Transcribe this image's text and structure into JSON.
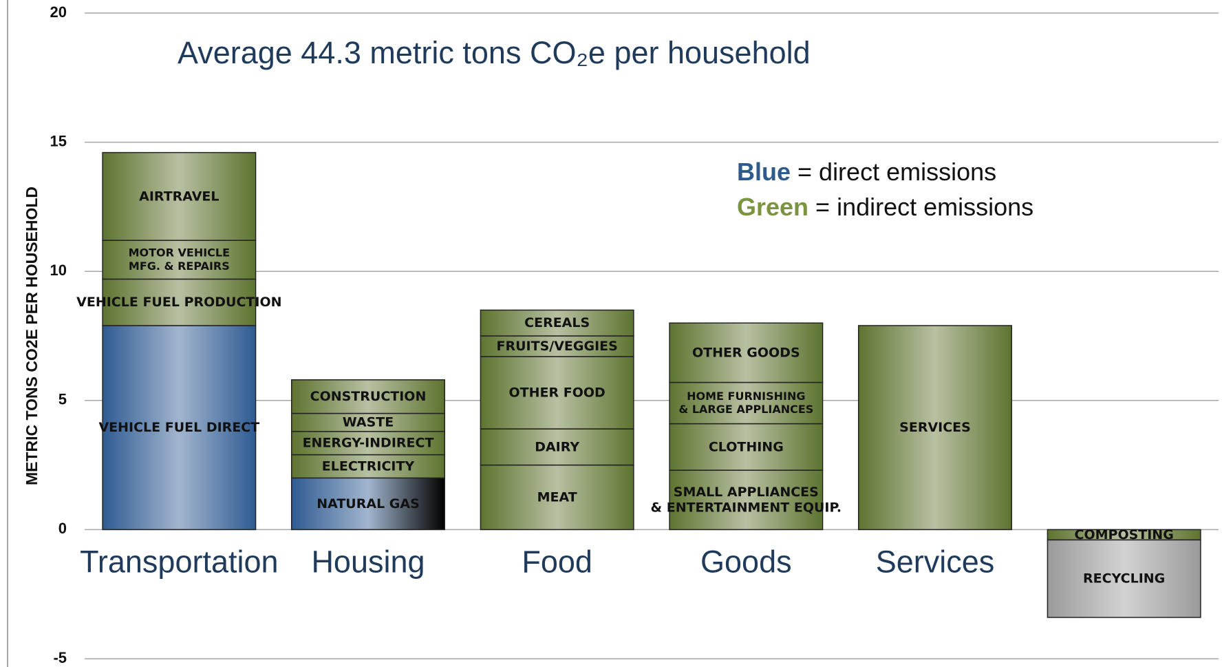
{
  "chart_data": {
    "type": "stacked-bar",
    "title": "Average 44.3 metric tons CO₂e per household",
    "y_label": "METRIC TONS CO2E PER HOUSEHOLD",
    "ylim": [
      -5,
      20
    ],
    "yticks": [
      -5,
      0,
      5,
      10,
      15,
      20
    ],
    "grid": true,
    "legend": [
      {
        "key": "Blue",
        "text": "= direct emissions",
        "color": "#2e5a8c"
      },
      {
        "key": "Green",
        "text": "= indirect emissions",
        "color": "#7a9440"
      }
    ],
    "categories": [
      "Transportation",
      "Housing",
      "Food",
      "Goods",
      "Services",
      null
    ],
    "stacks": [
      {
        "segments": [
          {
            "name": [
              "VEHICLE FUEL DIRECT"
            ],
            "value": 7.9,
            "color": "#2f5b92"
          },
          {
            "name": [
              "VEHICLE FUEL PRODUCTION"
            ],
            "value": 1.8,
            "color": "#5e7430"
          },
          {
            "name": [
              "MOTOR VEHICLE",
              "MFG. & REPAIRS"
            ],
            "value": 1.5,
            "color": "#5e7430"
          },
          {
            "name": [
              "AIRTRAVEL"
            ],
            "value": 3.4,
            "color": "#5e7430"
          }
        ]
      },
      {
        "segments": [
          {
            "name": [
              "NATURAL GAS"
            ],
            "value": 2.0,
            "color": "#2f5b92"
          },
          {
            "name": [
              "ELECTRICITY"
            ],
            "value": 0.9,
            "color": "#5e7430"
          },
          {
            "name": [
              "ENERGY-INDIRECT"
            ],
            "value": 0.9,
            "color": "#5e7430"
          },
          {
            "name": [
              "WASTE"
            ],
            "value": 0.7,
            "color": "#5e7430"
          },
          {
            "name": [
              "CONSTRUCTION"
            ],
            "value": 1.3,
            "color": "#5e7430"
          }
        ]
      },
      {
        "segments": [
          {
            "name": [
              "MEAT"
            ],
            "value": 2.5,
            "color": "#5e7430"
          },
          {
            "name": [
              "DAIRY"
            ],
            "value": 1.4,
            "color": "#5e7430"
          },
          {
            "name": [
              "OTHER FOOD"
            ],
            "value": 2.8,
            "color": "#5e7430"
          },
          {
            "name": [
              "FRUITS/VEGGIES"
            ],
            "value": 0.8,
            "color": "#5e7430"
          },
          {
            "name": [
              "CEREALS"
            ],
            "value": 1.0,
            "color": "#5e7430"
          }
        ]
      },
      {
        "segments": [
          {
            "name": [
              "SMALL APPLIANCES",
              "& ENTERTAINMENT EQUIP."
            ],
            "value": 2.3,
            "color": "#5e7430"
          },
          {
            "name": [
              "CLOTHING"
            ],
            "value": 1.8,
            "color": "#5e7430"
          },
          {
            "name": [
              "HOME FURNISHING",
              "& LARGE APPLIANCES"
            ],
            "value": 1.6,
            "color": "#5e7430"
          },
          {
            "name": [
              "OTHER GOODS"
            ],
            "value": 2.3,
            "color": "#5e7430"
          }
        ]
      },
      {
        "segments": [
          {
            "name": [
              "SERVICES"
            ],
            "value": 7.9,
            "color": "#5e7430"
          }
        ]
      },
      {
        "segments": [
          {
            "name": [
              "COMPOSTING"
            ],
            "value": -0.4,
            "color": "#5e7430"
          },
          {
            "name": [
              "RECYCLING"
            ],
            "value": -3.0,
            "color": "#9a9a9a"
          }
        ]
      }
    ]
  }
}
